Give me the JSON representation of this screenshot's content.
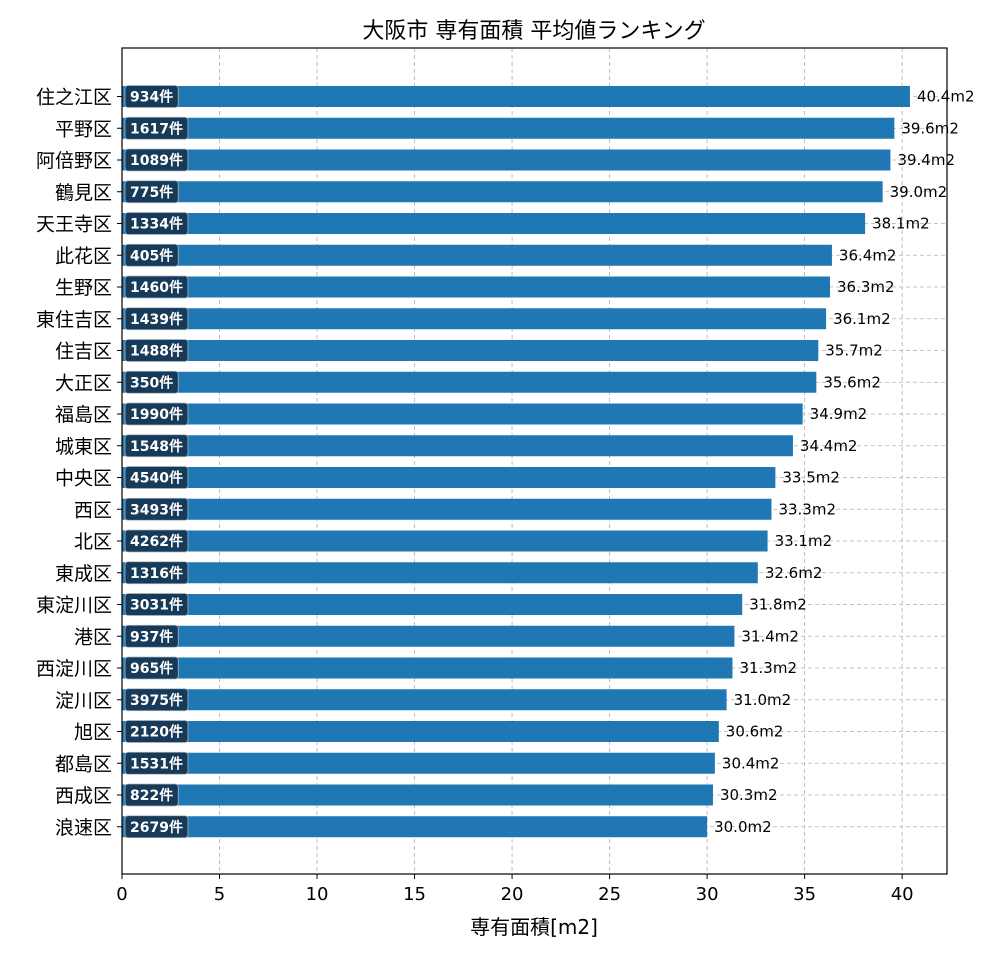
{
  "chart_data": {
    "type": "bar",
    "orientation": "horizontal",
    "title": "大阪市 専有面積 平均値ランキング",
    "xlabel": "専有面積[m2]",
    "ylabel": "",
    "xlim": [
      0,
      42.3
    ],
    "xticks": [
      0,
      5,
      10,
      15,
      20,
      25,
      30,
      35,
      40
    ],
    "grid": true,
    "bar_color": "#1f77b4",
    "count_badge_color": "#163a57",
    "unit_suffix": "m2",
    "count_suffix": "件",
    "categories": [
      "住之江区",
      "平野区",
      "阿倍野区",
      "鶴見区",
      "天王寺区",
      "此花区",
      "生野区",
      "東住吉区",
      "住吉区",
      "大正区",
      "福島区",
      "城東区",
      "中央区",
      "西区",
      "北区",
      "東成区",
      "東淀川区",
      "港区",
      "西淀川区",
      "淀川区",
      "旭区",
      "都島区",
      "西成区",
      "浪速区"
    ],
    "values": [
      40.4,
      39.6,
      39.4,
      39.0,
      38.1,
      36.4,
      36.3,
      36.1,
      35.7,
      35.6,
      34.9,
      34.4,
      33.5,
      33.3,
      33.1,
      32.6,
      31.8,
      31.4,
      31.3,
      31.0,
      30.6,
      30.4,
      30.3,
      30.0
    ],
    "value_labels": [
      "40.4m2",
      "39.6m2",
      "39.4m2",
      "39.0m2",
      "38.1m2",
      "36.4m2",
      "36.3m2",
      "36.1m2",
      "35.7m2",
      "35.6m2",
      "34.9m2",
      "34.4m2",
      "33.5m2",
      "33.3m2",
      "33.1m2",
      "32.6m2",
      "31.8m2",
      "31.4m2",
      "31.3m2",
      "31.0m2",
      "30.6m2",
      "30.4m2",
      "30.3m2",
      "30.0m2"
    ],
    "counts": [
      934,
      1617,
      1089,
      775,
      1334,
      405,
      1460,
      1439,
      1488,
      350,
      1990,
      1548,
      4540,
      3493,
      4262,
      1316,
      3031,
      937,
      965,
      3975,
      2120,
      1531,
      822,
      2679
    ],
    "count_labels": [
      "934件",
      "1617件",
      "1089件",
      "775件",
      "1334件",
      "405件",
      "1460件",
      "1439件",
      "1488件",
      "350件",
      "1990件",
      "1548件",
      "4540件",
      "3493件",
      "4262件",
      "1316件",
      "3031件",
      "937件",
      "965件",
      "3975件",
      "2120件",
      "1531件",
      "822件",
      "2679件"
    ]
  }
}
